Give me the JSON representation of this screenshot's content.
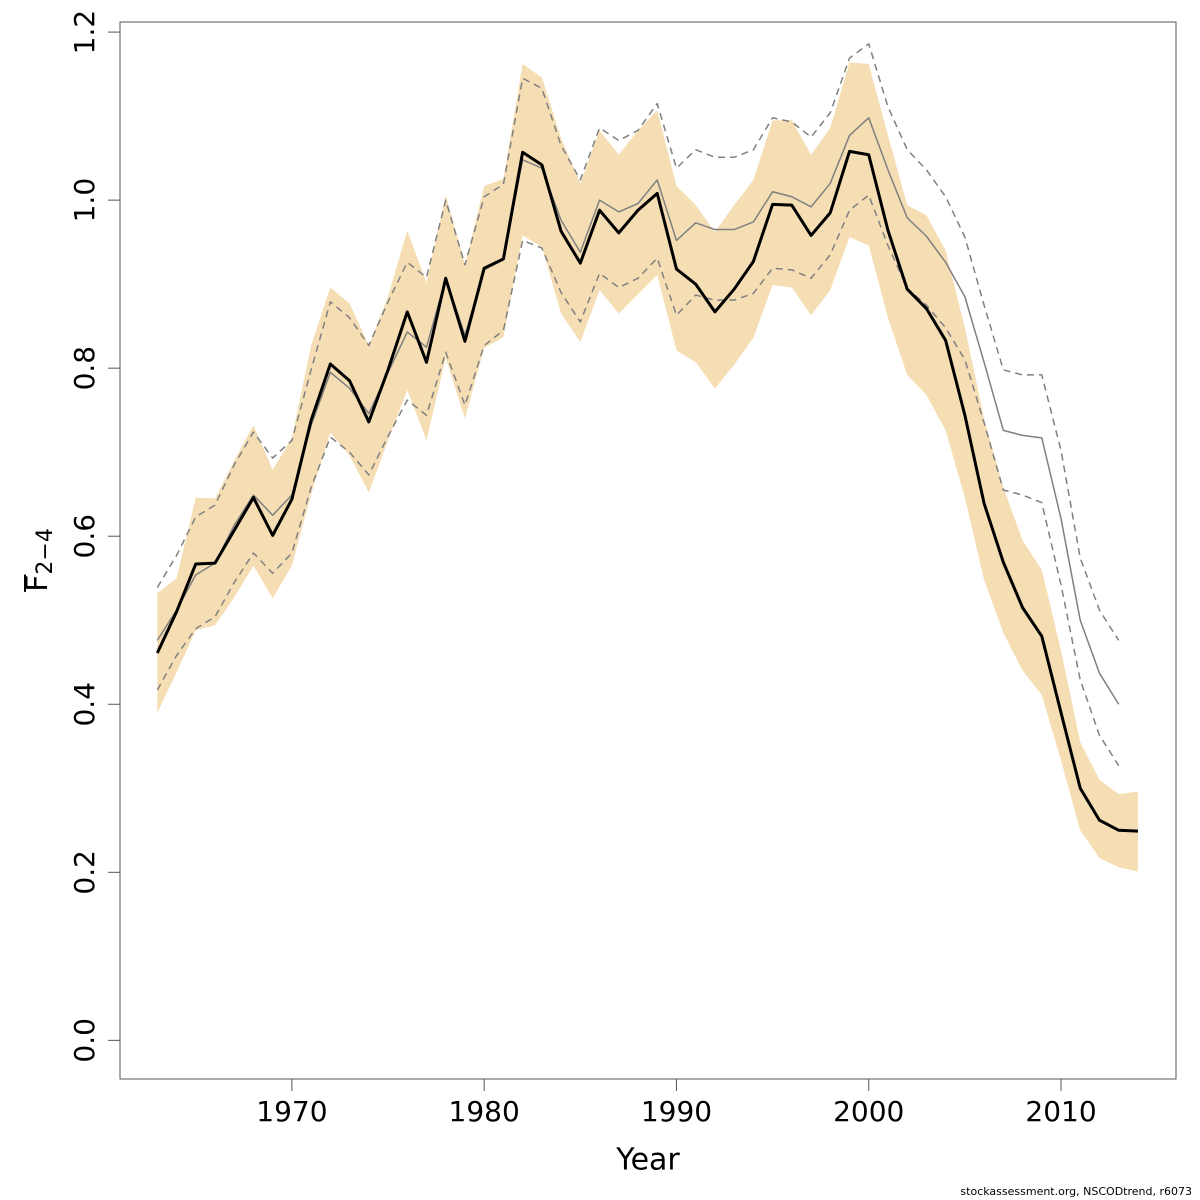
{
  "chart_data": {
    "type": "line",
    "xlabel": "Year",
    "ylabel": "F",
    "ylabel_sub": "2−4",
    "ylabel_overline": true,
    "caption": "stockassessment.org, NSCODtrend, r6073",
    "x": [
      1963,
      1964,
      1965,
      1966,
      1967,
      1968,
      1969,
      1970,
      1971,
      1972,
      1973,
      1974,
      1975,
      1976,
      1977,
      1978,
      1979,
      1980,
      1981,
      1982,
      1983,
      1984,
      1985,
      1986,
      1987,
      1988,
      1989,
      1990,
      1991,
      1992,
      1993,
      1994,
      1995,
      1996,
      1997,
      1998,
      1999,
      2000,
      2001,
      2002,
      2003,
      2004,
      2005,
      2006,
      2007,
      2008,
      2009,
      2010,
      2011,
      2012,
      2013,
      2014
    ],
    "xlim": [
      1961.06,
      2015.98
    ],
    "xticks": [
      1970,
      1980,
      1990,
      2000,
      2010
    ],
    "ylim": [
      -0.046,
      1.212
    ],
    "yticks": [
      {
        "value": 0,
        "label": "0.0"
      },
      0.2,
      0.4,
      0.6,
      0.8,
      {
        "value": 1,
        "label": "1.0"
      },
      1.2
    ],
    "band": {
      "color": "#f5deb3",
      "upper": [
        0.532,
        0.55,
        0.646,
        0.645,
        0.69,
        0.732,
        0.679,
        0.717,
        0.827,
        0.896,
        0.877,
        0.827,
        0.885,
        0.964,
        0.902,
        1.006,
        0.923,
        1.017,
        1.025,
        1.162,
        1.146,
        1.074,
        1.02,
        1.083,
        1.054,
        1.083,
        1.107,
        1.017,
        0.994,
        0.962,
        0.994,
        1.024,
        1.095,
        1.095,
        1.054,
        1.086,
        1.164,
        1.162,
        1.077,
        0.994,
        0.982,
        0.94,
        0.848,
        0.74,
        0.658,
        0.595,
        0.56,
        0.464,
        0.355,
        0.31,
        0.293,
        0.296
      ],
      "lower": [
        0.39,
        0.438,
        0.488,
        0.494,
        0.527,
        0.565,
        0.526,
        0.565,
        0.65,
        0.723,
        0.696,
        0.652,
        0.714,
        0.774,
        0.714,
        0.812,
        0.74,
        0.824,
        0.837,
        0.958,
        0.944,
        0.865,
        0.831,
        0.893,
        0.865,
        0.888,
        0.911,
        0.821,
        0.807,
        0.776,
        0.804,
        0.836,
        0.899,
        0.896,
        0.863,
        0.893,
        0.956,
        0.946,
        0.86,
        0.792,
        0.768,
        0.726,
        0.646,
        0.548,
        0.485,
        0.44,
        0.411,
        0.333,
        0.25,
        0.217,
        0.206,
        0.201
      ]
    },
    "series": [
      {
        "color": "#808080",
        "width": 1.5,
        "dashed": true,
        "values": [
          0.539,
          0.577,
          0.623,
          0.637,
          0.685,
          0.724,
          0.693,
          0.714,
          0.798,
          0.879,
          0.86,
          0.827,
          0.879,
          0.926,
          0.908,
          1.0,
          0.923,
          1.004,
          1.019,
          1.145,
          1.133,
          1.065,
          1.024,
          1.086,
          1.071,
          1.083,
          1.115,
          1.038,
          1.06,
          1.051,
          1.051,
          1.06,
          1.098,
          1.093,
          1.075,
          1.104,
          1.169,
          1.186,
          1.111,
          1.06,
          1.036,
          1.004,
          0.956,
          0.875,
          0.798,
          0.792,
          0.792,
          0.702,
          0.574,
          0.512,
          0.476,
          null
        ]
      },
      {
        "color": "#808080",
        "width": 1.5,
        "dashed": true,
        "values": [
          0.417,
          0.458,
          0.49,
          0.504,
          0.545,
          0.58,
          0.556,
          0.58,
          0.658,
          0.718,
          0.7,
          0.673,
          0.719,
          0.762,
          0.744,
          0.819,
          0.756,
          0.827,
          0.845,
          0.952,
          0.943,
          0.89,
          0.855,
          0.913,
          0.896,
          0.907,
          0.931,
          0.863,
          0.887,
          0.881,
          0.881,
          0.889,
          0.919,
          0.917,
          0.907,
          0.935,
          0.988,
          1.006,
          0.946,
          0.895,
          0.875,
          0.848,
          0.81,
          0.735,
          0.655,
          0.649,
          0.64,
          0.542,
          0.429,
          0.363,
          0.327,
          null
        ]
      },
      {
        "color": "#808080",
        "width": 1.5,
        "dashed": false,
        "values": [
          0.476,
          0.512,
          0.554,
          0.568,
          0.613,
          0.649,
          0.625,
          0.649,
          0.732,
          0.795,
          0.776,
          0.746,
          0.795,
          0.843,
          0.825,
          0.907,
          0.839,
          0.917,
          0.929,
          1.048,
          1.038,
          0.976,
          0.938,
          1.0,
          0.986,
          0.996,
          1.024,
          0.952,
          0.973,
          0.965,
          0.965,
          0.974,
          1.01,
          1.004,
          0.992,
          1.02,
          1.077,
          1.098,
          1.036,
          0.979,
          0.957,
          0.926,
          0.885,
          0.807,
          0.726,
          0.72,
          0.717,
          0.621,
          0.5,
          0.437,
          0.4,
          null
        ]
      },
      {
        "color": "#000000",
        "width": 3,
        "dashed": false,
        "values": [
          0.461,
          0.51,
          0.567,
          0.568,
          0.607,
          0.646,
          0.601,
          0.644,
          0.738,
          0.805,
          0.785,
          0.736,
          0.798,
          0.867,
          0.807,
          0.907,
          0.832,
          0.919,
          0.93,
          1.057,
          1.042,
          0.963,
          0.925,
          0.988,
          0.961,
          0.988,
          1.008,
          0.918,
          0.9,
          0.867,
          0.894,
          0.927,
          0.995,
          0.994,
          0.958,
          0.985,
          1.058,
          1.054,
          0.964,
          0.894,
          0.871,
          0.833,
          0.744,
          0.639,
          0.569,
          0.515,
          0.481,
          0.39,
          0.3,
          0.262,
          0.25,
          0.249
        ]
      }
    ]
  }
}
